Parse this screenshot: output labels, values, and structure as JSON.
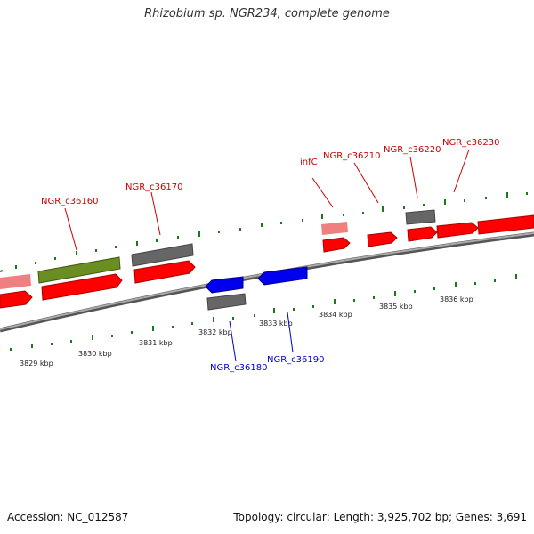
{
  "title": "Rhizobium sp. NGR234, complete genome",
  "footer": {
    "accession": "Accession: NC_012587",
    "summary": "Topology: circular; Length: 3,925,702 bp; Genes: 3,691"
  },
  "colors": {
    "forward_gene": "#ff0000",
    "forward_gene_light": "#f08080",
    "reverse_gene": "#0000ee",
    "rna_or_other": "#6b8e23",
    "pseudo_or_grey": "#666666",
    "backbone": "#888888",
    "tick": "#1a7a1a",
    "label_forward": "#cc0000",
    "label_reverse": "#0000cc"
  },
  "scale_labels": [
    "3829 kbp",
    "3830 kbp",
    "3831 kbp",
    "3832 kbp",
    "3833 kbp",
    "3834 kbp",
    "3835 kbp",
    "3836 kbp"
  ],
  "gene_labels_forward": [
    "NGR_c36160",
    "NGR_c36170",
    "infC",
    "NGR_c36210",
    "NGR_c36220",
    "NGR_c36230"
  ],
  "gene_labels_reverse": [
    "NGR_c36180",
    "NGR_c36190"
  ]
}
